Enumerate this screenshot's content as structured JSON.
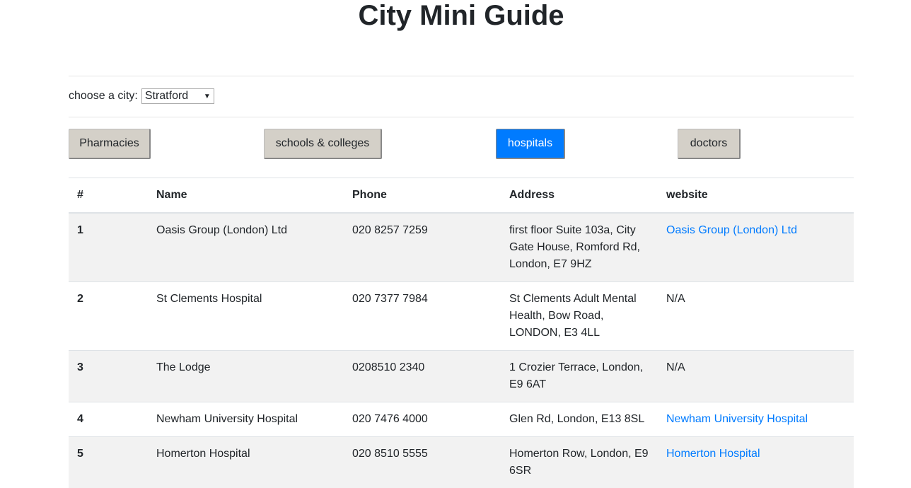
{
  "title": "City Mini Guide",
  "city": {
    "label": "choose a city:",
    "selected": "Stratford"
  },
  "categories": [
    {
      "label": "Pharmacies",
      "active": false
    },
    {
      "label": "schools & colleges",
      "active": false
    },
    {
      "label": "hospitals",
      "active": true
    },
    {
      "label": "doctors",
      "active": false
    }
  ],
  "table": {
    "headers": [
      "#",
      "Name",
      "Phone",
      "Address",
      "website"
    ],
    "rows": [
      {
        "num": "1",
        "name": "Oasis Group (London) Ltd",
        "phone": "020 8257 7259",
        "address": "first floor Suite 103a, City Gate House, Romford Rd, London, E7 9HZ",
        "website": "Oasis Group (London) Ltd",
        "link": true
      },
      {
        "num": "2",
        "name": "St Clements Hospital",
        "phone": "020 7377 7984",
        "address": "St Clements Adult Mental Health, Bow Road, LONDON, E3 4LL",
        "website": "N/A",
        "link": false
      },
      {
        "num": "3",
        "name": "The Lodge",
        "phone": "0208510 2340",
        "address": "1 Crozier Terrace, London, E9 6AT",
        "website": "N/A",
        "link": false
      },
      {
        "num": "4",
        "name": "Newham University Hospital",
        "phone": "020 7476 4000",
        "address": "Glen Rd, London, E13 8SL",
        "website": "Newham University Hospital",
        "link": true
      },
      {
        "num": "5",
        "name": "Homerton Hospital",
        "phone": "020 8510 5555",
        "address": "Homerton Row, London, E9 6SR",
        "website": "Homerton Hospital",
        "link": true
      }
    ]
  },
  "colors": {
    "accent": "#007bff",
    "button": "#d4d0c8",
    "stripe": "#f2f2f2"
  }
}
